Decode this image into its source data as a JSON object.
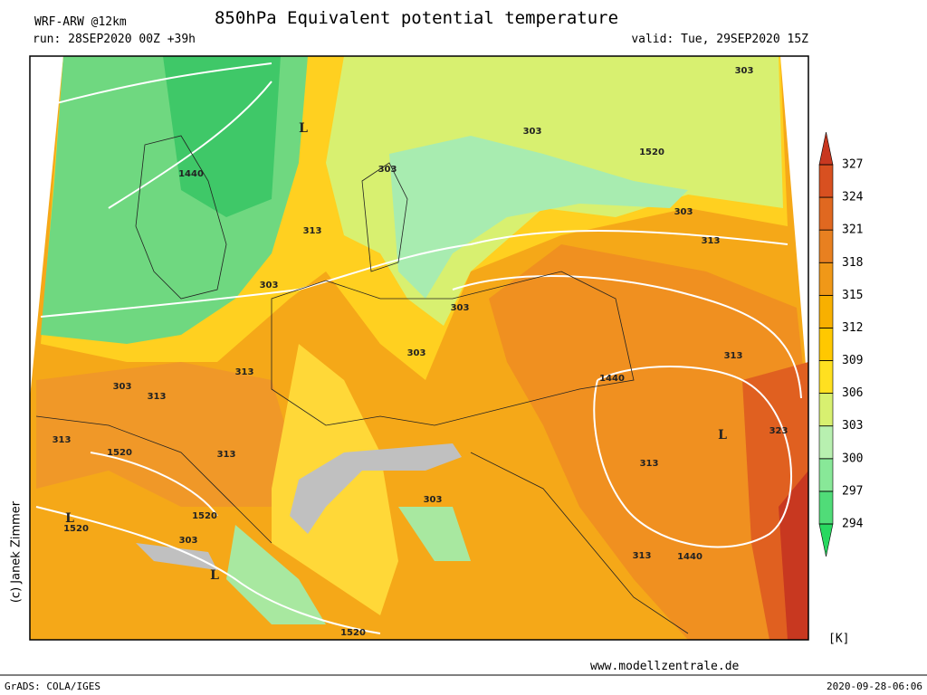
{
  "header": {
    "model": "WRF-ARW @12km",
    "run": "run: 28SEP2020 00Z +39h",
    "title": "850hPa Equivalent potential temperature",
    "valid": "valid: Tue, 29SEP2020 15Z"
  },
  "colorbar": {
    "ticks": [
      294,
      297,
      300,
      303,
      306,
      309,
      312,
      315,
      318,
      321,
      324,
      327
    ],
    "unit": "[K]",
    "colors": [
      "#28d860",
      "#50dc78",
      "#88e898",
      "#b8f0b0",
      "#d8f070",
      "#ffe020",
      "#ffc800",
      "#f8b000",
      "#f09818",
      "#e88020",
      "#e06820",
      "#d85020",
      "#c83820"
    ]
  },
  "map_labels": [
    "L",
    "1440",
    "1520",
    "303",
    "303",
    "303",
    "303",
    "313",
    "313",
    "303",
    "303",
    "303",
    "313",
    "1440",
    "313",
    "303",
    "313",
    "313",
    "1520",
    "313",
    "L",
    "323",
    "313",
    "303",
    "1520",
    "L",
    "1520",
    "303",
    "L",
    "313",
    "1440",
    "1520"
  ],
  "credit": "(c) Janek Zimmer",
  "website": "www.modellzentrale.de",
  "footer": {
    "software": "GrADS: COLA/IGES",
    "timestamp": "2020-09-28-06:06"
  }
}
